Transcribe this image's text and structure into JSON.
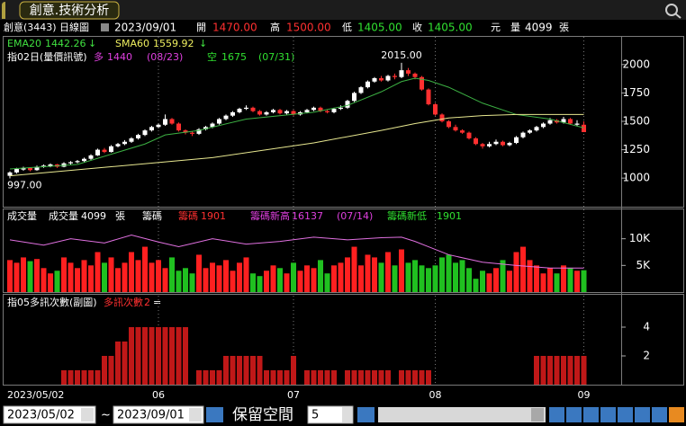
{
  "window": {
    "title": "創意.技術分析"
  },
  "quote": {
    "name": "創意(3443)",
    "period": "日線圖",
    "date": "2023/09/01",
    "open_label": "開",
    "open": "1470.00",
    "high_label": "高",
    "high": "1500.00",
    "low_label": "低",
    "low": "1405.00",
    "close_label": "收",
    "close": "1405.00",
    "unit": "元",
    "volume_label": "量",
    "volume": "4099",
    "volume_unit": "張"
  },
  "chart_data": [
    {
      "type": "candlestick",
      "categories": [
        "2023/05/02",
        null,
        null,
        null,
        null,
        null,
        null,
        null,
        null,
        null,
        null,
        null,
        null,
        null,
        null,
        null,
        null,
        null,
        null,
        null,
        null,
        null,
        "06",
        null,
        null,
        null,
        null,
        null,
        null,
        null,
        null,
        null,
        null,
        null,
        null,
        null,
        null,
        null,
        null,
        null,
        null,
        null,
        "07",
        null,
        null,
        null,
        null,
        null,
        null,
        null,
        null,
        null,
        null,
        null,
        null,
        null,
        null,
        null,
        null,
        null,
        null,
        null,
        null,
        "08",
        null,
        null,
        null,
        null,
        null,
        null,
        null,
        null,
        null,
        null,
        null,
        null,
        null,
        null,
        null,
        null,
        null,
        null,
        null,
        null,
        null,
        "09"
      ],
      "candles": [
        [
          1020,
          1060,
          997,
          1050
        ],
        [
          1050,
          1090,
          1040,
          1080
        ],
        [
          1075,
          1100,
          1065,
          1090
        ],
        [
          1090,
          1095,
          1060,
          1070
        ],
        [
          1070,
          1110,
          1065,
          1100
        ],
        [
          1100,
          1120,
          1090,
          1110
        ],
        [
          1105,
          1130,
          1095,
          1120
        ],
        [
          1120,
          1125,
          1090,
          1100
        ],
        [
          1100,
          1140,
          1095,
          1130
        ],
        [
          1130,
          1150,
          1120,
          1140
        ],
        [
          1140,
          1160,
          1130,
          1150
        ],
        [
          1150,
          1180,
          1140,
          1170
        ],
        [
          1170,
          1210,
          1160,
          1200
        ],
        [
          1200,
          1260,
          1195,
          1250
        ],
        [
          1250,
          1265,
          1220,
          1230
        ],
        [
          1230,
          1290,
          1225,
          1280
        ],
        [
          1280,
          1310,
          1270,
          1300
        ],
        [
          1300,
          1335,
          1290,
          1320
        ],
        [
          1320,
          1360,
          1310,
          1350
        ],
        [
          1350,
          1390,
          1340,
          1380
        ],
        [
          1380,
          1430,
          1370,
          1420
        ],
        [
          1420,
          1460,
          1410,
          1450
        ],
        [
          1450,
          1480,
          1440,
          1470
        ],
        [
          1470,
          1560,
          1460,
          1520
        ],
        [
          1520,
          1530,
          1470,
          1480
        ],
        [
          1480,
          1490,
          1410,
          1420
        ],
        [
          1420,
          1430,
          1385,
          1400
        ],
        [
          1400,
          1410,
          1370,
          1390
        ],
        [
          1390,
          1440,
          1380,
          1430
        ],
        [
          1430,
          1460,
          1420,
          1450
        ],
        [
          1450,
          1490,
          1440,
          1480
        ],
        [
          1480,
          1530,
          1470,
          1520
        ],
        [
          1520,
          1560,
          1510,
          1550
        ],
        [
          1550,
          1590,
          1540,
          1580
        ],
        [
          1580,
          1620,
          1570,
          1610
        ],
        [
          1610,
          1640,
          1600,
          1620
        ],
        [
          1620,
          1630,
          1580,
          1590
        ],
        [
          1590,
          1600,
          1550,
          1560
        ],
        [
          1560,
          1590,
          1550,
          1580
        ],
        [
          1580,
          1610,
          1570,
          1600
        ],
        [
          1600,
          1610,
          1560,
          1570
        ],
        [
          1570,
          1600,
          1560,
          1590
        ],
        [
          1590,
          1600,
          1550,
          1560
        ],
        [
          1560,
          1590,
          1550,
          1580
        ],
        [
          1580,
          1610,
          1570,
          1600
        ],
        [
          1600,
          1630,
          1590,
          1620
        ],
        [
          1620,
          1630,
          1580,
          1590
        ],
        [
          1590,
          1600,
          1570,
          1580
        ],
        [
          1580,
          1620,
          1570,
          1610
        ],
        [
          1610,
          1640,
          1600,
          1620
        ],
        [
          1620,
          1690,
          1610,
          1680
        ],
        [
          1680,
          1760,
          1670,
          1750
        ],
        [
          1750,
          1810,
          1740,
          1800
        ],
        [
          1800,
          1860,
          1790,
          1850
        ],
        [
          1850,
          1890,
          1840,
          1880
        ],
        [
          1880,
          1900,
          1850,
          1860
        ],
        [
          1860,
          1910,
          1850,
          1900
        ],
        [
          1900,
          1920,
          1870,
          1890
        ],
        [
          1890,
          2015,
          1880,
          1950
        ],
        [
          1950,
          1970,
          1900,
          1920
        ],
        [
          1920,
          1930,
          1870,
          1890
        ],
        [
          1890,
          1900,
          1770,
          1780
        ],
        [
          1780,
          1790,
          1640,
          1650
        ],
        [
          1650,
          1660,
          1550,
          1560
        ],
        [
          1560,
          1570,
          1490,
          1500
        ],
        [
          1500,
          1510,
          1440,
          1450
        ],
        [
          1450,
          1470,
          1410,
          1420
        ],
        [
          1420,
          1430,
          1390,
          1400
        ],
        [
          1400,
          1410,
          1340,
          1350
        ],
        [
          1350,
          1360,
          1290,
          1300
        ],
        [
          1300,
          1310,
          1260,
          1280
        ],
        [
          1280,
          1320,
          1270,
          1300
        ],
        [
          1300,
          1340,
          1290,
          1320
        ],
        [
          1320,
          1330,
          1280,
          1290
        ],
        [
          1290,
          1320,
          1280,
          1310
        ],
        [
          1310,
          1370,
          1300,
          1360
        ],
        [
          1360,
          1410,
          1350,
          1400
        ],
        [
          1400,
          1430,
          1390,
          1420
        ],
        [
          1420,
          1460,
          1410,
          1450
        ],
        [
          1450,
          1490,
          1440,
          1480
        ],
        [
          1480,
          1530,
          1470,
          1510
        ],
        [
          1510,
          1520,
          1480,
          1490
        ],
        [
          1490,
          1540,
          1480,
          1520
        ],
        [
          1520,
          1530,
          1470,
          1480
        ],
        [
          1470,
          1510,
          1460,
          1480
        ],
        [
          1470,
          1500,
          1405,
          1405
        ]
      ],
      "up_color": "#ffffff",
      "down_color": "#ff3030",
      "ylim": [
        748,
        2244
      ],
      "yticks": [
        1000,
        1250,
        1500,
        1750,
        2000
      ],
      "lines": [
        {
          "name": "EMA20",
          "legend_value": "1442.26",
          "color": "#3cb043",
          "x": [
            0,
            10,
            20,
            23,
            28,
            35,
            45,
            50,
            55,
            58,
            60,
            62,
            65,
            70,
            75,
            80,
            85
          ],
          "values": [
            1080,
            1120,
            1300,
            1380,
            1420,
            1520,
            1580,
            1640,
            1760,
            1850,
            1880,
            1860,
            1800,
            1660,
            1560,
            1520,
            1442.26
          ]
        },
        {
          "name": "SMA60",
          "legend_value": "1559.92",
          "color": "#e8e890",
          "x": [
            0,
            15,
            30,
            45,
            55,
            60,
            65,
            70,
            75,
            80,
            85
          ],
          "values": [
            1020,
            1100,
            1180,
            1310,
            1420,
            1480,
            1530,
            1550,
            1560,
            1560,
            1559.92
          ]
        }
      ],
      "peak_label": "2015.00",
      "low_label": "997.00",
      "signal": {
        "title": "指02日(量價訊號)",
        "long_label": "多",
        "long_value": "1440",
        "long_date": "(08/23)",
        "short_label": "空",
        "short_value": "1675",
        "short_date": "(07/31)"
      }
    },
    {
      "type": "bar",
      "values": [
        6000,
        5500,
        6500,
        5800,
        6200,
        4500,
        3500,
        4000,
        6500,
        5500,
        4500,
        6000,
        5000,
        7500,
        5500,
        6500,
        4500,
        5500,
        7500,
        6000,
        8500,
        5500,
        6000,
        4500,
        6500,
        4000,
        4500,
        3500,
        7000,
        4500,
        5500,
        5000,
        6000,
        4000,
        5500,
        6500,
        3500,
        3000,
        4000,
        5000,
        4500,
        3500,
        5500,
        4000,
        5000,
        4500,
        6000,
        3500,
        5000,
        5500,
        6500,
        8500,
        5000,
        7000,
        6500,
        5500,
        7500,
        5000,
        8000,
        5500,
        6000,
        5000,
        4500,
        5000,
        6500,
        7000,
        5500,
        6000,
        4500,
        2500,
        4000,
        3500,
        4500,
        6000,
        4000,
        7500,
        8500,
        6000,
        5000,
        3500,
        4500,
        3500,
        5000,
        4500,
        4000,
        4099
      ],
      "up_color": "#ff2020",
      "down_color": "#20c020",
      "ylim": [
        0,
        15500
      ],
      "yticks": [
        {
          "value": 5000,
          "label": "5K"
        },
        {
          "value": 10000,
          "label": "10K"
        }
      ],
      "line": {
        "color": "#e070e0",
        "x": [
          0,
          5,
          9,
          14,
          18,
          22,
          25,
          30,
          35,
          40,
          45,
          50,
          55,
          58,
          60,
          62,
          65,
          70,
          75,
          80,
          85
        ],
        "values": [
          9800,
          8800,
          10000,
          9200,
          10700,
          9400,
          8500,
          10000,
          9000,
          9500,
          10300,
          9800,
          10200,
          10300,
          9500,
          8500,
          7000,
          5600,
          5000,
          4500,
          4500
        ]
      },
      "header": {
        "title": "成交量",
        "vol_label": "成交量",
        "vol_value": "4099",
        "vol_unit": "張",
        "chip_title": "籌碼",
        "chip_label": "籌碼",
        "chip_value": "1901",
        "high_label": "籌碼新高",
        "high_value": "16137",
        "high_date": "(07/14)",
        "low_label": "籌碼新低",
        "low_value": "1901"
      }
    },
    {
      "type": "bar",
      "values": [
        0,
        0,
        0,
        0,
        0,
        0,
        0,
        0,
        1,
        1,
        1,
        1,
        1,
        1,
        2,
        2,
        3,
        3,
        4,
        4,
        4,
        4,
        4,
        4,
        4,
        4,
        4,
        0,
        1,
        1,
        1,
        1,
        2,
        2,
        2,
        2,
        2,
        2,
        1,
        1,
        1,
        1,
        2,
        0,
        1,
        1,
        1,
        1,
        1,
        0,
        1,
        1,
        1,
        1,
        1,
        1,
        1,
        0,
        1,
        1,
        1,
        1,
        1,
        0,
        0,
        0,
        0,
        0,
        0,
        0,
        0,
        0,
        0,
        0,
        0,
        0,
        0,
        0,
        2,
        2,
        2,
        2,
        2,
        2,
        2,
        2
      ],
      "color": "#c01818",
      "ylim": [
        0,
        6.25
      ],
      "yticks": [
        2,
        4
      ],
      "header": {
        "title": "指05多訊次數(副圖)",
        "label": "多訊次數",
        "value": "2",
        "suffix": "="
      }
    }
  ],
  "controls": {
    "from": "2023/05/02",
    "sep": "~",
    "to": "2023/09/01",
    "space_label": "保留空間",
    "space_value": "5"
  }
}
